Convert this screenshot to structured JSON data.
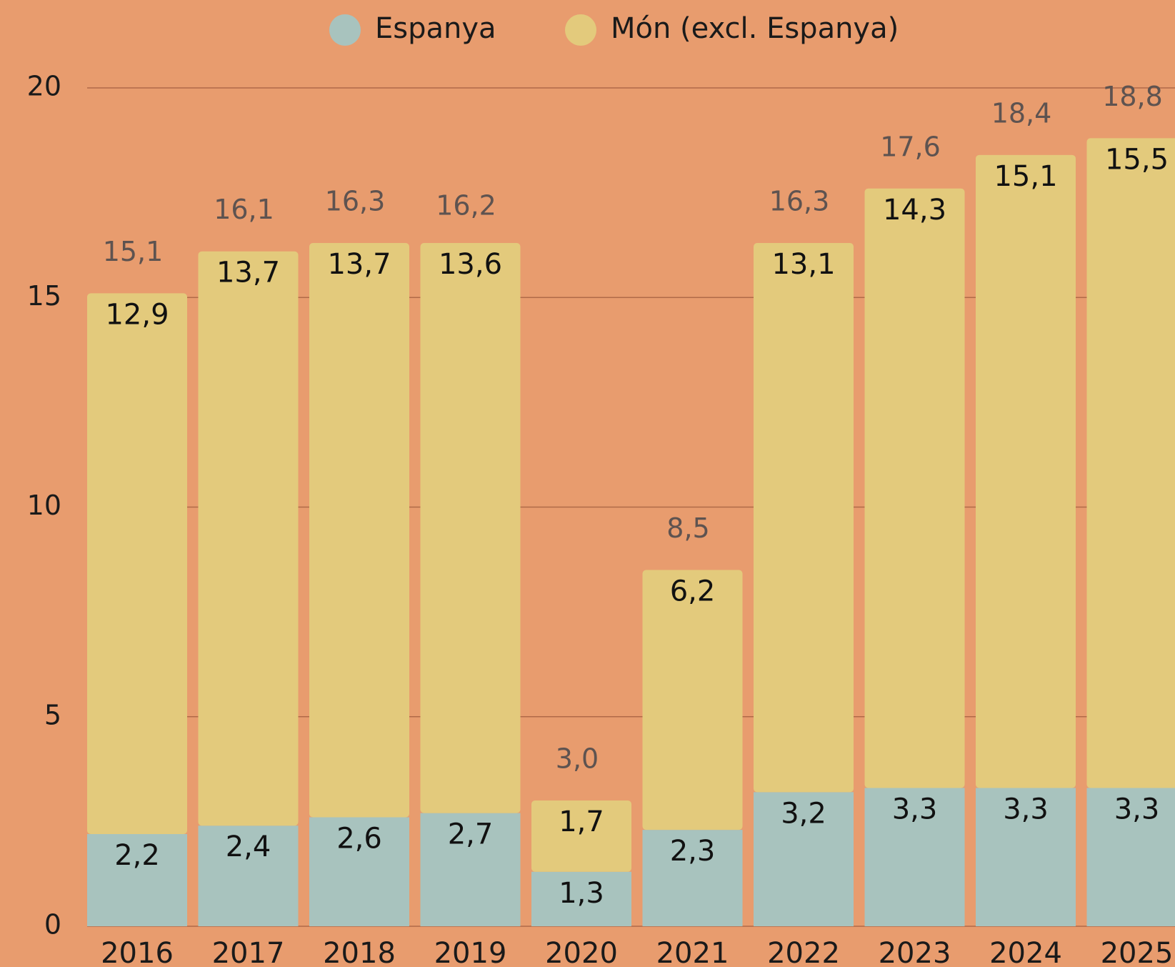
{
  "chart_data": {
    "type": "stacked_bar",
    "categories": [
      "2016",
      "2017",
      "2018",
      "2019",
      "2020",
      "2021",
      "2022",
      "2023",
      "2024",
      "2025"
    ],
    "series": [
      {
        "name": "Espanya",
        "color": "#a8c3be",
        "values": [
          2.2,
          2.4,
          2.6,
          2.7,
          1.3,
          2.3,
          3.2,
          3.3,
          3.3,
          3.3
        ],
        "value_labels": [
          "2,2",
          "2,4",
          "2,6",
          "2,7",
          "1,3",
          "2,3",
          "3,2",
          "3,3",
          "3,3",
          "3,3"
        ]
      },
      {
        "name": "Món (excl. Espanya)",
        "color": "#e3ca7c",
        "values": [
          12.9,
          13.7,
          13.7,
          13.6,
          1.7,
          6.2,
          13.1,
          14.3,
          15.1,
          15.5
        ],
        "value_labels": [
          "12,9",
          "13,7",
          "13,7",
          "13,6",
          "1,7",
          "6,2",
          "13,1",
          "14,3",
          "15,1",
          "15,5"
        ]
      }
    ],
    "totals": {
      "values": [
        15.1,
        16.1,
        16.3,
        16.2,
        3.0,
        8.5,
        16.3,
        17.6,
        18.4,
        18.8
      ],
      "value_labels": [
        "15,1",
        "16,1",
        "16,3",
        "16,2",
        "3,0",
        "8,5",
        "16,3",
        "17,6",
        "18,4",
        "18,8"
      ]
    },
    "ylim": [
      0,
      20
    ],
    "yticks": [
      0,
      5,
      10,
      15,
      20
    ],
    "grid": true,
    "legend": "top"
  }
}
